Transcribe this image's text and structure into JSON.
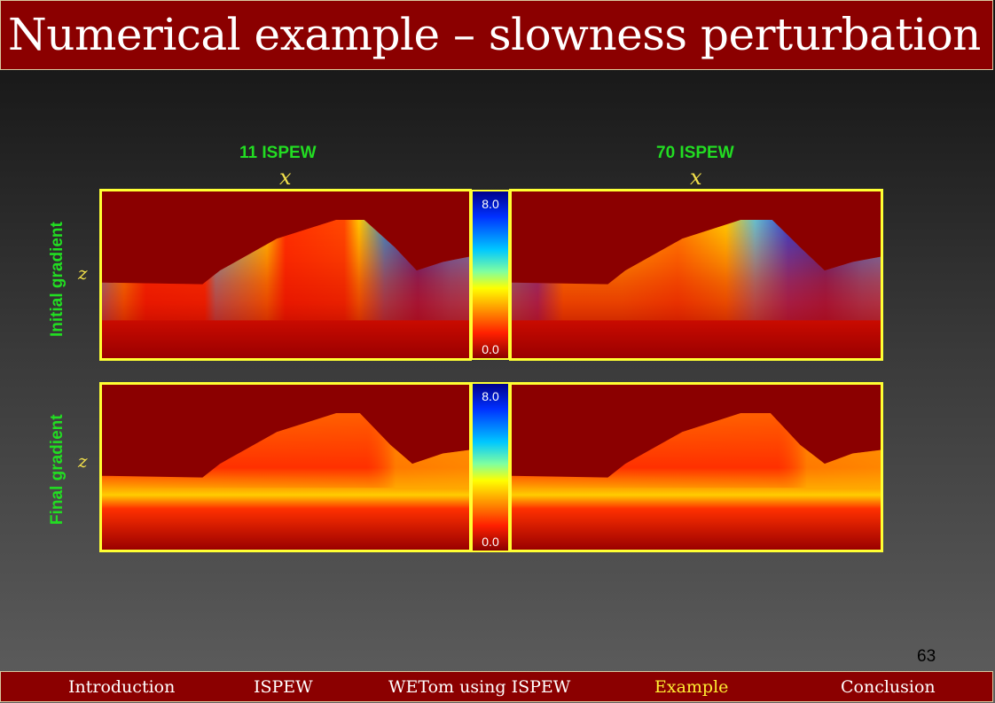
{
  "title": "Numerical example – slowness perturbation",
  "columns": [
    "11 ISPEW",
    "70 ISPEW"
  ],
  "x_axis_label": "x",
  "z_axis_label": "z",
  "rows": [
    "Initial gradient",
    "Final gradient"
  ],
  "colorbar": {
    "max_label": "8.0",
    "min_label": "0.0"
  },
  "page_number": "63",
  "nav": {
    "items": [
      "Introduction",
      "ISPEW",
      "WETom using ISPEW",
      "Example",
      "Conclusion"
    ],
    "active": "Example"
  },
  "colors": {
    "header_bg": "#8b0000",
    "frame": "#ffff33",
    "label_green": "#22dd22",
    "axis_yellow": "#f2e04a",
    "nav_active": "#ffee33"
  }
}
